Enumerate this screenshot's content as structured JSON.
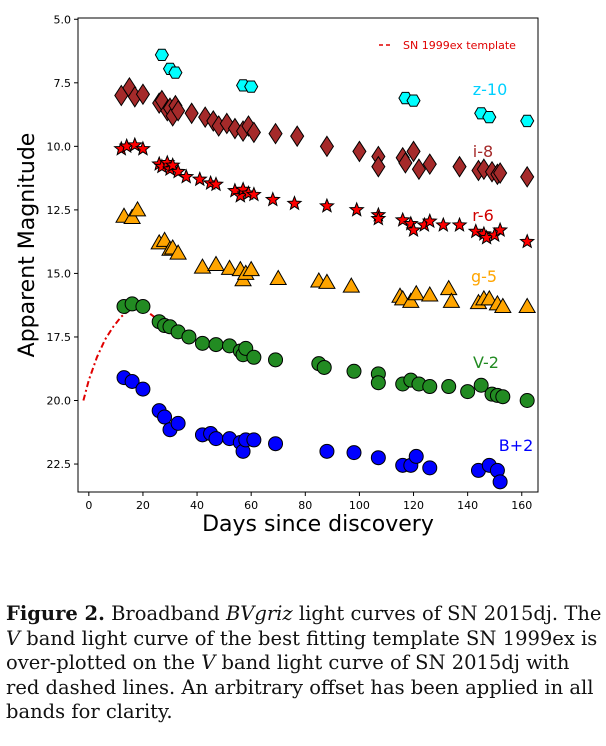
{
  "chart_data": {
    "type": "scatter",
    "xlabel": "Days since discovery",
    "ylabel": "Apparent Magnitude",
    "xlim": [
      -4,
      166
    ],
    "ylim": [
      23.6,
      4.95
    ],
    "y_inverted": true,
    "xticks": [
      0,
      20,
      40,
      60,
      80,
      100,
      120,
      140,
      160
    ],
    "yticks": [
      5.0,
      7.5,
      10.0,
      12.5,
      15.0,
      17.5,
      20.0,
      22.5
    ],
    "ytick_labels": [
      "5.0",
      "7.5",
      "10.0",
      "12.5",
      "15.0",
      "17.5",
      "20.0",
      "22.5"
    ],
    "legend": {
      "position": "top-right",
      "entries": [
        {
          "label": "SN 1999ex template",
          "style": "red dashed line"
        }
      ]
    },
    "template_curve": {
      "name": "SN 1999ex template",
      "color": "#e00000",
      "x": [
        -2,
        0,
        3,
        6,
        9,
        12,
        15,
        18,
        21,
        24,
        27,
        30,
        33,
        36
      ],
      "y": [
        20.0,
        19.2,
        18.3,
        17.6,
        17.1,
        16.7,
        16.45,
        16.35,
        16.45,
        16.7,
        16.95,
        17.2,
        17.45,
        17.65
      ]
    },
    "series": [
      {
        "label": "z-10",
        "marker": "hexagon",
        "color": "#00ffff",
        "x": [
          27,
          30,
          32,
          57,
          60,
          117,
          120,
          145,
          148,
          162
        ],
        "y": [
          6.4,
          6.95,
          7.1,
          7.6,
          7.65,
          8.1,
          8.2,
          8.7,
          8.85,
          9.0
        ]
      },
      {
        "label": "i-8",
        "marker": "diamond",
        "color": "#a52a2a",
        "x": [
          12,
          15,
          17,
          20,
          26,
          27,
          29,
          30,
          31,
          32,
          33,
          38,
          43,
          46,
          48,
          51,
          54,
          57,
          59,
          61,
          69,
          77,
          88,
          100,
          107,
          107,
          116,
          117,
          120,
          122,
          126,
          137,
          144,
          146,
          149,
          151,
          152,
          162
        ],
        "y": [
          8.0,
          7.7,
          8.05,
          7.95,
          8.3,
          8.2,
          8.6,
          8.5,
          8.8,
          8.4,
          8.6,
          8.7,
          8.85,
          9.0,
          9.2,
          9.1,
          9.3,
          9.4,
          9.2,
          9.45,
          9.5,
          9.6,
          10.0,
          10.2,
          10.4,
          10.8,
          10.45,
          10.65,
          10.2,
          10.9,
          10.7,
          10.8,
          10.95,
          10.9,
          11.0,
          11.1,
          11.05,
          11.2
        ]
      },
      {
        "label": "r-6",
        "marker": "star",
        "color": "#ff0000",
        "x": [
          12,
          14,
          17,
          20,
          26,
          27,
          29,
          30,
          31,
          33,
          36,
          41,
          45,
          47,
          54,
          56,
          57,
          59,
          61,
          68,
          76,
          88,
          99,
          107,
          107,
          116,
          119,
          120,
          124,
          126,
          131,
          137,
          143,
          146,
          147,
          150,
          152,
          162
        ],
        "y": [
          10.1,
          10.0,
          9.95,
          10.1,
          10.7,
          10.8,
          10.65,
          10.9,
          10.75,
          11.0,
          11.2,
          11.3,
          11.45,
          11.5,
          11.75,
          11.95,
          11.7,
          11.85,
          11.9,
          12.1,
          12.25,
          12.35,
          12.5,
          12.7,
          12.85,
          12.9,
          13.05,
          13.3,
          13.1,
          12.95,
          13.1,
          13.1,
          13.35,
          13.45,
          13.6,
          13.5,
          13.3,
          13.75
        ]
      },
      {
        "label": "g-5",
        "marker": "triangle",
        "color": "#ffa500",
        "x": [
          13,
          16,
          18,
          26,
          28,
          30,
          31,
          33,
          42,
          47,
          52,
          56,
          57,
          58,
          60,
          70,
          85,
          88,
          97,
          115,
          116,
          119,
          121,
          126,
          133,
          134,
          144,
          146,
          148,
          151,
          153,
          162
        ],
        "y": [
          12.75,
          12.8,
          12.5,
          13.8,
          13.7,
          14.05,
          14.0,
          14.2,
          14.75,
          14.65,
          14.8,
          14.85,
          15.25,
          15.0,
          14.85,
          15.2,
          15.3,
          15.35,
          15.5,
          15.9,
          16.0,
          16.1,
          15.8,
          15.85,
          15.6,
          16.1,
          16.15,
          16.0,
          16.0,
          16.2,
          16.3,
          16.3
        ]
      },
      {
        "label": "V-2",
        "marker": "circle",
        "color": "#228b22",
        "x": [
          13,
          16,
          20,
          26,
          28,
          30,
          33,
          37,
          42,
          47,
          52,
          56,
          57,
          58,
          61,
          69,
          85,
          87,
          98,
          107,
          107,
          116,
          119,
          122,
          126,
          133,
          140,
          145,
          149,
          151,
          153,
          162
        ],
        "y": [
          16.3,
          16.2,
          16.3,
          16.9,
          17.05,
          17.1,
          17.3,
          17.5,
          17.75,
          17.8,
          17.85,
          18.05,
          18.2,
          17.95,
          18.3,
          18.4,
          18.55,
          18.7,
          18.85,
          18.95,
          19.3,
          19.35,
          19.2,
          19.35,
          19.45,
          19.45,
          19.65,
          19.4,
          19.75,
          19.8,
          19.85,
          20.0
        ]
      },
      {
        "label": "B+2",
        "marker": "circle",
        "color": "#0000ff",
        "x": [
          13,
          16,
          20,
          26,
          28,
          30,
          33,
          42,
          45,
          47,
          52,
          56,
          57,
          58,
          61,
          69,
          88,
          98,
          107,
          116,
          119,
          121,
          126,
          144,
          148,
          151,
          152
        ],
        "y": [
          19.1,
          19.25,
          19.55,
          20.4,
          20.65,
          21.15,
          20.9,
          21.35,
          21.3,
          21.5,
          21.5,
          21.65,
          22.0,
          21.55,
          21.55,
          21.7,
          22.0,
          22.05,
          22.25,
          22.55,
          22.55,
          22.2,
          22.65,
          22.75,
          22.55,
          22.75,
          23.2
        ]
      }
    ]
  },
  "caption": {
    "label": "Figure 2.",
    "lines": [
      "Broadband",
      "light curves of SN 2015dj.  The",
      "band light curve of the best fitting template SN 1999ex is",
      "over-plotted on the",
      "band light curve of SN 2015dj with",
      "red dashed lines.  An arbitrary offset has been applied in all",
      "bands for clarity."
    ],
    "math_bvgriz": "BVgriz",
    "math_v": "V"
  }
}
